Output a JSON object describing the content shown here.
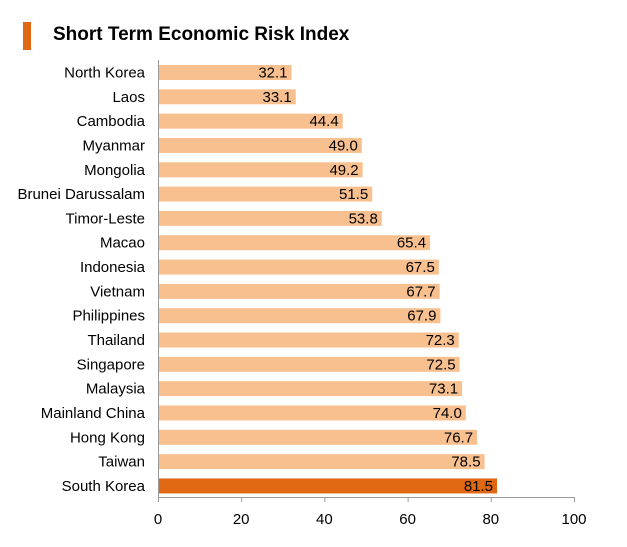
{
  "chart_data": {
    "type": "bar",
    "orientation": "horizontal",
    "title": "Short Term Economic Risk Index",
    "categories": [
      "North Korea",
      "Laos",
      "Cambodia",
      "Myanmar",
      "Mongolia",
      "Brunei Darussalam",
      "Timor-Leste",
      "Macao",
      "Indonesia",
      "Vietnam",
      "Philippines",
      "Thailand",
      "Singapore",
      "Malaysia",
      "Mainland China",
      "Hong Kong",
      "Taiwan",
      "South Korea"
    ],
    "values": [
      32.1,
      33.1,
      44.4,
      49.0,
      49.2,
      51.5,
      53.8,
      65.4,
      67.5,
      67.7,
      67.9,
      72.3,
      72.5,
      73.1,
      74.0,
      76.7,
      78.5,
      81.5
    ],
    "value_labels": [
      "32.1",
      "33.1",
      "44.4",
      "49.0",
      "49.2",
      "51.5",
      "53.8",
      "65.4",
      "67.5",
      "67.7",
      "67.9",
      "72.3",
      "72.5",
      "73.1",
      "74.0",
      "76.7",
      "78.5",
      "81.5"
    ],
    "xlim": [
      0,
      100
    ],
    "xticks": [
      0,
      20,
      40,
      60,
      80,
      100
    ],
    "xtick_labels": [
      "0",
      "20",
      "40",
      "60",
      "80",
      "100"
    ],
    "grid": false,
    "legend": "none",
    "highlight_category": "South Korea",
    "colors": {
      "bar": "#f9c08f",
      "highlight": "#e06812",
      "title_accent": "#e06812",
      "axis": "#999999"
    }
  }
}
